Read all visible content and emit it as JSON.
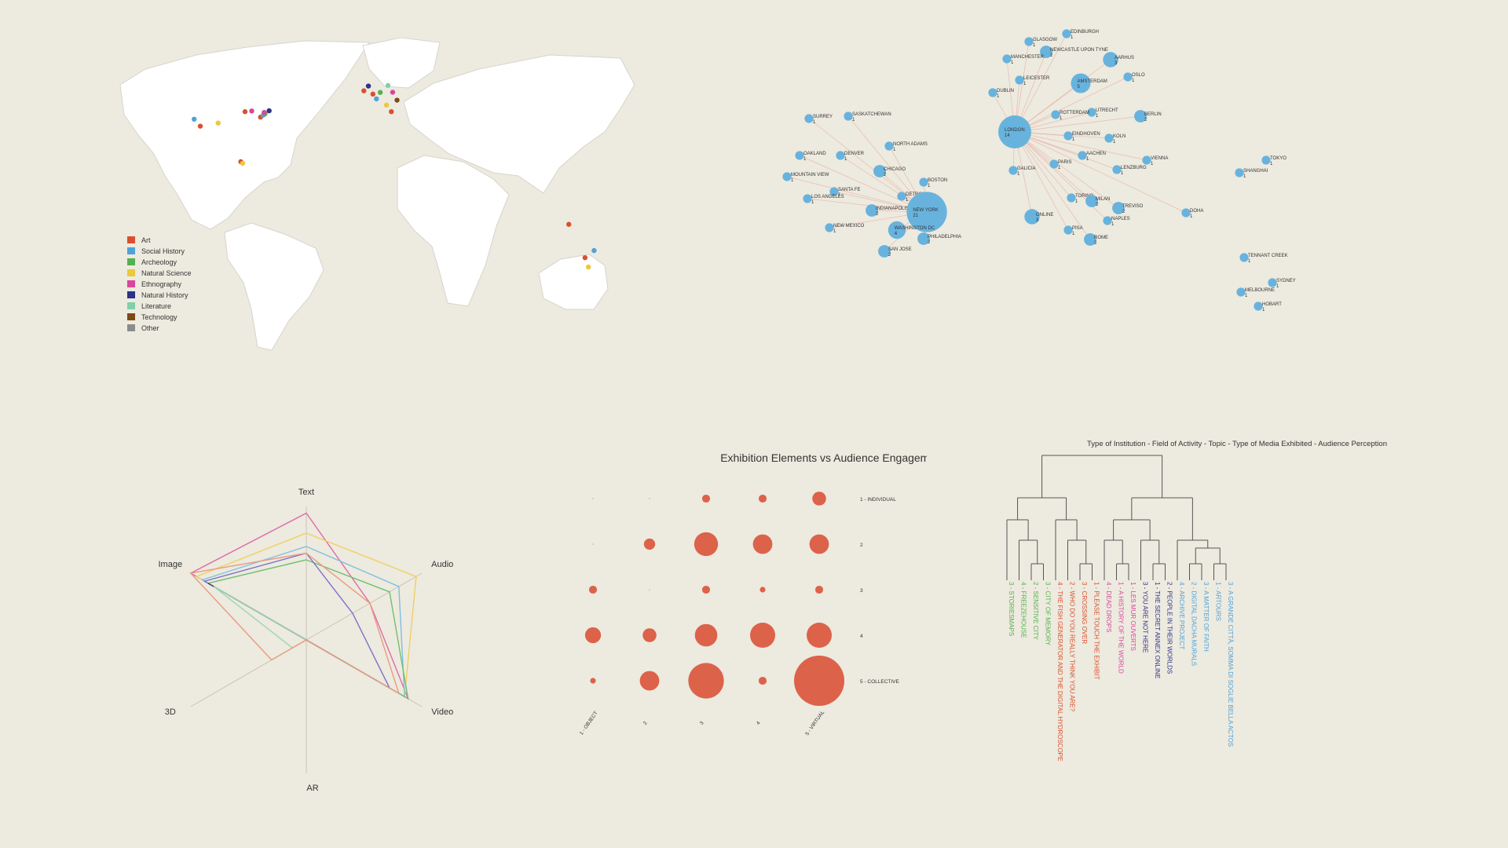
{
  "colors": {
    "background": "#edeadf",
    "accent": "#dc624a",
    "network": "#67b3dd",
    "link": "#e8a79b",
    "grid": "#c9c5b6"
  },
  "chart_data": [
    {
      "type": "scatter",
      "kind": "world-map",
      "legend": [
        {
          "label": "Art",
          "color": "#d9502f"
        },
        {
          "label": "Social History",
          "color": "#4fa3da"
        },
        {
          "label": "Archeology",
          "color": "#55b14e"
        },
        {
          "label": "Natural Science",
          "color": "#ecc83b"
        },
        {
          "label": "Ethnography",
          "color": "#d9479c"
        },
        {
          "label": "Natural History",
          "color": "#2d3288"
        },
        {
          "label": "Literature",
          "color": "#82cfa8"
        },
        {
          "label": "Technology",
          "color": "#7c4a16"
        },
        {
          "label": "Other",
          "color": "#8c8c8c"
        }
      ],
      "legend_position": "bottom-left",
      "points": [
        {
          "lon": -122.4,
          "lat": 37.8,
          "category": "Social History"
        },
        {
          "lon": -118.2,
          "lat": 34.0,
          "category": "Art"
        },
        {
          "lon": -106.0,
          "lat": 35.7,
          "category": "Natural Science"
        },
        {
          "lon": -87.6,
          "lat": 41.9,
          "category": "Art"
        },
        {
          "lon": -83.0,
          "lat": 42.3,
          "category": "Ethnography"
        },
        {
          "lon": -77.0,
          "lat": 38.9,
          "category": "Art"
        },
        {
          "lon": -75.2,
          "lat": 40.0,
          "category": "Social History"
        },
        {
          "lon": -74.0,
          "lat": 40.7,
          "category": "Art"
        },
        {
          "lon": -73.9,
          "lat": 40.8,
          "category": "Archeology"
        },
        {
          "lon": -71.1,
          "lat": 42.4,
          "category": "Natural History"
        },
        {
          "lon": -74.5,
          "lat": 41.5,
          "category": "Ethnography"
        },
        {
          "lon": -90.5,
          "lat": 14.6,
          "category": "Art"
        },
        {
          "lon": -89.2,
          "lat": 13.7,
          "category": "Natural Science"
        },
        {
          "lon": -6.3,
          "lat": 53.3,
          "category": "Art"
        },
        {
          "lon": -0.1,
          "lat": 51.5,
          "category": "Art"
        },
        {
          "lon": 2.3,
          "lat": 48.9,
          "category": "Social History"
        },
        {
          "lon": 4.9,
          "lat": 52.4,
          "category": "Archeology"
        },
        {
          "lon": 13.4,
          "lat": 52.5,
          "category": "Ethnography"
        },
        {
          "lon": 9.2,
          "lat": 45.5,
          "category": "Natural Science"
        },
        {
          "lon": 12.5,
          "lat": 41.9,
          "category": "Art"
        },
        {
          "lon": -3.2,
          "lat": 55.9,
          "category": "Natural History"
        },
        {
          "lon": 10.2,
          "lat": 56.2,
          "category": "Literature"
        },
        {
          "lon": 16.4,
          "lat": 48.2,
          "category": "Technology"
        },
        {
          "lon": 151.2,
          "lat": -33.9,
          "category": "Social History"
        },
        {
          "lon": 145.0,
          "lat": -37.8,
          "category": "Art"
        },
        {
          "lon": 147.3,
          "lat": -42.9,
          "category": "Natural Science"
        },
        {
          "lon": 133.9,
          "lat": -19.6,
          "category": "Art"
        }
      ]
    },
    {
      "type": "scatter",
      "kind": "network",
      "nodes": [
        {
          "label": "SURREY",
          "value": "1"
        },
        {
          "label": "SASKATCHEWAN",
          "value": "1"
        },
        {
          "label": "OAKLAND",
          "value": "1"
        },
        {
          "label": "DENVER",
          "value": "1"
        },
        {
          "label": "NORTH ADAMS",
          "value": "1"
        },
        {
          "label": "MOUNTAIN VIEW",
          "value": "1"
        },
        {
          "label": "CHICAGO",
          "value": "2"
        },
        {
          "label": "BOSTON",
          "value": "1"
        },
        {
          "label": "SANTA FE",
          "value": "1"
        },
        {
          "label": "DETROIT",
          "value": "1"
        },
        {
          "label": "LOS ANGELES",
          "value": "1"
        },
        {
          "label": "INDIANAPOLIS",
          "value": "2"
        },
        {
          "label": "NEW YORK",
          "value": "21"
        },
        {
          "label": "NEW MEXICO",
          "value": "1"
        },
        {
          "label": "WASHINGTON DC",
          "value": "4"
        },
        {
          "label": "PHILADELPHIA",
          "value": "2"
        },
        {
          "label": "SAN JOSE",
          "value": "2"
        },
        {
          "label": "GLASGOW",
          "value": "1"
        },
        {
          "label": "EDINBURGH",
          "value": "1"
        },
        {
          "label": "NEWCASTLE UPON TYNE",
          "value": "2"
        },
        {
          "label": "MANCHESTER",
          "value": "1"
        },
        {
          "label": "AARHUS",
          "value": "3"
        },
        {
          "label": "LEICESTER",
          "value": "1"
        },
        {
          "label": "AMSTERDAM",
          "value": "5"
        },
        {
          "label": "OSLO",
          "value": "1"
        },
        {
          "label": "DUBLIN",
          "value": "1"
        },
        {
          "label": "UTRECHT",
          "value": "1"
        },
        {
          "label": "ROTTERDAM",
          "value": "1"
        },
        {
          "label": "BERLIN",
          "value": "2"
        },
        {
          "label": "LONDON",
          "value": "14"
        },
        {
          "label": "EINDHOVEN",
          "value": "1"
        },
        {
          "label": "KOLN",
          "value": "1"
        },
        {
          "label": "AACHEN",
          "value": "1"
        },
        {
          "label": "VIENNA",
          "value": "1"
        },
        {
          "label": "PARIS",
          "value": "1"
        },
        {
          "label": "GALICIA",
          "value": "1"
        },
        {
          "label": "LENZBURG",
          "value": "1"
        },
        {
          "label": "TORINO",
          "value": "1"
        },
        {
          "label": "MILAN",
          "value": "2"
        },
        {
          "label": "TREVISO",
          "value": "2"
        },
        {
          "label": "ONLINE",
          "value": "3"
        },
        {
          "label": "NAPLES",
          "value": "1"
        },
        {
          "label": "DOHA",
          "value": "1"
        },
        {
          "label": "PISA",
          "value": "1"
        },
        {
          "label": "ROME",
          "value": "2"
        },
        {
          "label": "TOKYO",
          "value": "1"
        },
        {
          "label": "SHANGHAI",
          "value": "1"
        },
        {
          "label": "TENNANT CREEK",
          "value": "1"
        },
        {
          "label": "SYDNEY",
          "value": "1"
        },
        {
          "label": "MELBOURNE",
          "value": "1"
        },
        {
          "label": "HOBART",
          "value": "1"
        }
      ],
      "hubs": [
        "NEW YORK",
        "LONDON",
        "AMSTERDAM"
      ]
    },
    {
      "type": "line",
      "kind": "radar",
      "axes": [
        "Text",
        "Audio",
        "Video",
        "AR",
        "3D",
        "Image"
      ],
      "series": [
        {
          "color": "#e06aa8",
          "values": [
            0.95,
            0.55,
            0.88,
            0.0,
            0.0,
            1.0
          ]
        },
        {
          "color": "#f0d060",
          "values": [
            0.8,
            0.95,
            0.85,
            0.0,
            0.0,
            0.95
          ]
        },
        {
          "color": "#7fbfe0",
          "values": [
            0.7,
            0.8,
            0.85,
            0.0,
            0.0,
            0.9
          ]
        },
        {
          "color": "#6fc06f",
          "values": [
            0.6,
            0.72,
            0.88,
            0.0,
            0.0,
            0.85
          ]
        },
        {
          "color": "#7a70c8",
          "values": [
            0.65,
            0.4,
            0.72,
            0.0,
            0.0,
            0.88
          ]
        },
        {
          "color": "#4a3a7a",
          "values": [
            0.0,
            0.0,
            0.62,
            0.0,
            0.0,
            0.85
          ]
        },
        {
          "color": "#9ad6b4",
          "values": [
            0.0,
            0.0,
            0.7,
            0.0,
            0.12,
            0.8
          ]
        },
        {
          "color": "#e99a80",
          "values": [
            0.65,
            0.55,
            0.8,
            0.0,
            0.3,
            1.0
          ]
        }
      ]
    },
    {
      "type": "scatter",
      "kind": "bubble-matrix",
      "title": "Exhibition Elements vs Audience Engagement",
      "x_labels": [
        "1 - OBJECT",
        "2",
        "3",
        "4",
        "5 - VIRTUAL"
      ],
      "y_labels": [
        "1 - INDIVIDUAL",
        "2",
        "3",
        "4",
        "5 - COLLECTIVE"
      ],
      "values": [
        [
          0,
          0,
          1,
          1,
          3
        ],
        [
          0,
          2,
          9,
          6,
          6
        ],
        [
          1,
          0,
          1,
          0.5,
          1
        ],
        [
          4,
          3,
          8,
          10,
          10
        ],
        [
          0.5,
          6,
          20,
          1,
          40
        ]
      ]
    },
    {
      "type": "table",
      "kind": "dendrogram",
      "title": "Type of Institution - Field of Activity - Topic - Type of Media Exhibited - Audience Perception",
      "leaves": [
        {
          "label": "3 - STORIESMAPS",
          "color": "#55b14e"
        },
        {
          "label": "4 - FREEZEHOUSE",
          "color": "#55b14e"
        },
        {
          "label": "2 - SENSITIVE CITY",
          "color": "#55b14e"
        },
        {
          "label": "3 - CITY OF MEMORY",
          "color": "#55b14e"
        },
        {
          "label": "4 - THE FISH GENERATOR AND THE DIGITAL HYDROSCOPE",
          "color": "#d9502f"
        },
        {
          "label": "2 - WHO DO YOU REALLY THINK YOU ARE?",
          "color": "#d9502f"
        },
        {
          "label": "3 - CROSSING OVER",
          "color": "#d9502f"
        },
        {
          "label": "1 - PLEASE TOUCH THE EXHIBIT",
          "color": "#d9502f"
        },
        {
          "label": "4 - DEAD DROPS",
          "color": "#d9479c"
        },
        {
          "label": "1 - A HISTORY OF THE WORLD",
          "color": "#d9479c"
        },
        {
          "label": "1 - LES MUR OUVERTS",
          "color": "#d9479c"
        },
        {
          "label": "3 - YOU ARE NOT HERE",
          "color": "#2d3288"
        },
        {
          "label": "1 - THE SECRET ANNEX ONLINE",
          "color": "#2d3288"
        },
        {
          "label": "2 - PEOPLE IN THEIR WORLDS",
          "color": "#2d3288"
        },
        {
          "label": "4 - ARCHIVE PROJECT",
          "color": "#4fa3da"
        },
        {
          "label": "2 - DIGITAL DACHA MURALS",
          "color": "#4fa3da"
        },
        {
          "label": "3 - A MATTER OF FAITH",
          "color": "#4fa3da"
        },
        {
          "label": "1 - ARTOURS",
          "color": "#4fa3da"
        },
        {
          "label": "3 - A GRANDE CITTÀ, SOMMA DI SOGLIE BELLA ACTOS",
          "color": "#4fa3da"
        }
      ]
    }
  ]
}
